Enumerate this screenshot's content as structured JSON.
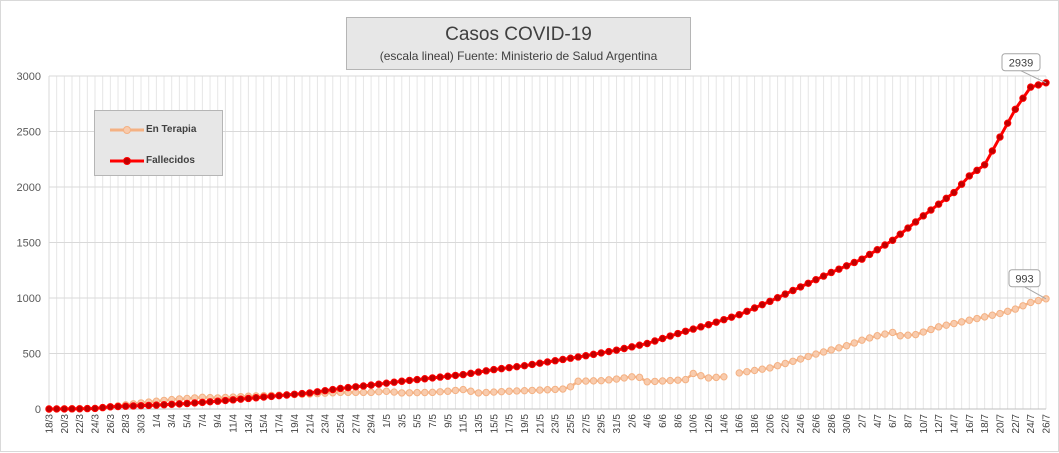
{
  "chart_data": {
    "type": "line",
    "title": "Casos COVID-19",
    "subtitle": "(escala lineal) Fuente: Ministerio de Salud Argentina",
    "xlabel": "",
    "ylabel": "",
    "ylim": [
      0,
      3000
    ],
    "yticks": [
      0,
      500,
      1000,
      1500,
      2000,
      2500,
      3000
    ],
    "grid": true,
    "legend_position": "top-left",
    "x_start": "18/3",
    "x_end": "26/7",
    "x_tick_labels": [
      "18/3",
      "20/3",
      "22/3",
      "24/3",
      "26/3",
      "28/3",
      "30/3",
      "1/4",
      "3/4",
      "5/4",
      "7/4",
      "9/4",
      "11/4",
      "13/4",
      "15/4",
      "17/4",
      "19/4",
      "21/4",
      "23/4",
      "25/4",
      "27/4",
      "29/4",
      "1/5",
      "3/5",
      "5/5",
      "7/5",
      "9/5",
      "11/5",
      "13/5",
      "15/5",
      "17/5",
      "19/5",
      "21/5",
      "23/5",
      "25/5",
      "27/5",
      "29/5",
      "31/5",
      "2/6",
      "4/6",
      "6/6",
      "8/6",
      "10/6",
      "12/6",
      "14/6",
      "16/6",
      "18/6",
      "20/6",
      "22/6",
      "24/6",
      "26/6",
      "28/6",
      "30/6",
      "2/7",
      "4/7",
      "6/7",
      "8/7",
      "10/7",
      "12/7",
      "14/7",
      "16/7",
      "18/7",
      "20/7",
      "22/7",
      "24/7",
      "26/7"
    ],
    "series": [
      {
        "name": "En Terapia",
        "color": "#f4b183",
        "gap_after": "14/6",
        "gap_until": "16/6",
        "anchor_values": [
          [
            "18/3",
            0
          ],
          [
            "24/3",
            5
          ],
          [
            "26/3",
            20
          ],
          [
            "30/3",
            55
          ],
          [
            "3/4",
            85
          ],
          [
            "5/4",
            95
          ],
          [
            "7/4",
            105
          ],
          [
            "9/4",
            100
          ],
          [
            "13/4",
            115
          ],
          [
            "17/4",
            125
          ],
          [
            "21/4",
            135
          ],
          [
            "25/4",
            150
          ],
          [
            "29/4",
            150
          ],
          [
            "1/5",
            160
          ],
          [
            "3/5",
            145
          ],
          [
            "7/5",
            150
          ],
          [
            "9/5",
            160
          ],
          [
            "11/5",
            175
          ],
          [
            "13/5",
            145
          ],
          [
            "17/5",
            160
          ],
          [
            "21/5",
            170
          ],
          [
            "24/5",
            180
          ],
          [
            "25/5",
            200
          ],
          [
            "26/5",
            250
          ],
          [
            "29/5",
            255
          ],
          [
            "31/5",
            270
          ],
          [
            "2/6",
            290
          ],
          [
            "3/6",
            285
          ],
          [
            "4/6",
            245
          ],
          [
            "8/6",
            260
          ],
          [
            "9/6",
            265
          ],
          [
            "10/6",
            320
          ],
          [
            "11/6",
            300
          ],
          [
            "12/6",
            280
          ],
          [
            "14/6",
            290
          ],
          [
            "16/6",
            325
          ],
          [
            "20/6",
            370
          ],
          [
            "24/6",
            450
          ],
          [
            "26/6",
            495
          ],
          [
            "30/6",
            570
          ],
          [
            "2/7",
            620
          ],
          [
            "4/7",
            660
          ],
          [
            "6/7",
            690
          ],
          [
            "7/7",
            660
          ],
          [
            "9/7",
            670
          ],
          [
            "12/7",
            740
          ],
          [
            "16/7",
            800
          ],
          [
            "20/7",
            860
          ],
          [
            "22/7",
            900
          ],
          [
            "24/7",
            960
          ],
          [
            "26/7",
            993
          ]
        ],
        "end_label": "993"
      },
      {
        "name": "Fallecidos",
        "color": "#ff0000",
        "anchor_values": [
          [
            "18/3",
            0
          ],
          [
            "22/3",
            2
          ],
          [
            "24/3",
            5
          ],
          [
            "26/3",
            20
          ],
          [
            "28/3",
            25
          ],
          [
            "30/3",
            30
          ],
          [
            "1/4",
            35
          ],
          [
            "5/4",
            50
          ],
          [
            "9/4",
            70
          ],
          [
            "13/4",
            95
          ],
          [
            "17/4",
            120
          ],
          [
            "21/4",
            145
          ],
          [
            "25/4",
            185
          ],
          [
            "29/4",
            215
          ],
          [
            "3/5",
            250
          ],
          [
            "7/5",
            280
          ],
          [
            "11/5",
            310
          ],
          [
            "15/5",
            355
          ],
          [
            "19/5",
            390
          ],
          [
            "23/5",
            435
          ],
          [
            "27/5",
            480
          ],
          [
            "31/5",
            530
          ],
          [
            "4/6",
            590
          ],
          [
            "8/6",
            680
          ],
          [
            "12/6",
            760
          ],
          [
            "16/6",
            850
          ],
          [
            "20/6",
            970
          ],
          [
            "24/6",
            1100
          ],
          [
            "28/6",
            1230
          ],
          [
            "2/7",
            1350
          ],
          [
            "6/7",
            1520
          ],
          [
            "10/7",
            1740
          ],
          [
            "14/7",
            1950
          ],
          [
            "16/7",
            2100
          ],
          [
            "18/7",
            2200
          ],
          [
            "20/7",
            2450
          ],
          [
            "22/7",
            2700
          ],
          [
            "24/7",
            2900
          ],
          [
            "26/7",
            2939
          ]
        ],
        "end_label": "2939"
      }
    ]
  }
}
